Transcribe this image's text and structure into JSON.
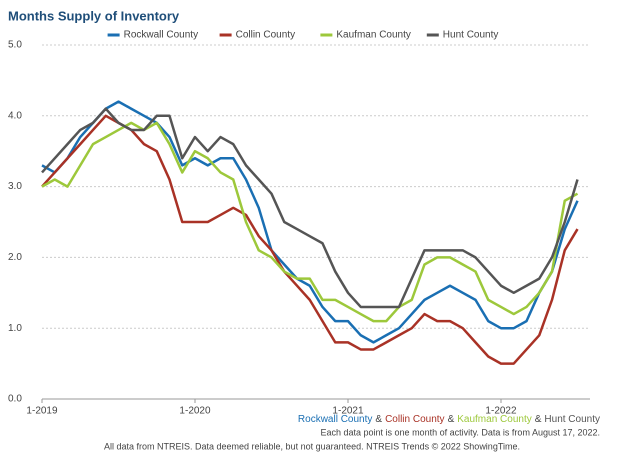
{
  "chart_data": {
    "type": "line",
    "title": "Months Supply of Inventory",
    "categories": [
      "1-2019",
      null,
      null,
      null,
      null,
      null,
      null,
      null,
      null,
      null,
      null,
      null,
      "1-2020",
      null,
      null,
      null,
      null,
      null,
      null,
      null,
      null,
      null,
      null,
      null,
      "1-2021",
      null,
      null,
      null,
      null,
      null,
      null,
      null,
      null,
      null,
      null,
      null,
      "1-2022",
      null,
      null,
      null,
      null,
      null,
      null
    ],
    "series": [
      {
        "name": "Rockwall County",
        "color": "#1a6fb3",
        "values": [
          3.3,
          3.2,
          3.4,
          3.7,
          3.9,
          4.1,
          4.2,
          4.1,
          4.0,
          3.9,
          3.7,
          3.3,
          3.4,
          3.3,
          3.4,
          3.4,
          3.1,
          2.7,
          2.1,
          1.9,
          1.7,
          1.6,
          1.3,
          1.1,
          1.1,
          0.9,
          0.8,
          0.9,
          1.0,
          1.2,
          1.4,
          1.5,
          1.6,
          1.5,
          1.4,
          1.1,
          1.0,
          1.0,
          1.1,
          1.5,
          1.8,
          2.4,
          2.8
        ]
      },
      {
        "name": "Collin County",
        "color": "#a93226",
        "values": [
          3.0,
          3.2,
          3.4,
          3.6,
          3.8,
          4.0,
          3.9,
          3.8,
          3.6,
          3.5,
          3.1,
          2.5,
          2.5,
          2.5,
          2.6,
          2.7,
          2.6,
          2.3,
          2.1,
          1.8,
          1.6,
          1.4,
          1.1,
          0.8,
          0.8,
          0.7,
          0.7,
          0.8,
          0.9,
          1.0,
          1.2,
          1.1,
          1.1,
          1.0,
          0.8,
          0.6,
          0.5,
          0.5,
          0.7,
          0.9,
          1.4,
          2.1,
          2.4
        ]
      },
      {
        "name": "Kaufman County",
        "color": "#9dc83b",
        "values": [
          3.0,
          3.1,
          3.0,
          3.3,
          3.6,
          3.7,
          3.8,
          3.9,
          3.8,
          3.9,
          3.6,
          3.2,
          3.5,
          3.4,
          3.2,
          3.1,
          2.5,
          2.1,
          2.0,
          1.8,
          1.7,
          1.7,
          1.4,
          1.4,
          1.3,
          1.2,
          1.1,
          1.1,
          1.3,
          1.4,
          1.9,
          2.0,
          2.0,
          1.9,
          1.8,
          1.4,
          1.3,
          1.2,
          1.3,
          1.5,
          1.8,
          2.8,
          2.9
        ]
      },
      {
        "name": "Hunt County",
        "color": "#555555",
        "values": [
          3.2,
          3.4,
          3.6,
          3.8,
          3.9,
          4.1,
          3.9,
          3.8,
          3.8,
          4.0,
          4.0,
          3.4,
          3.7,
          3.5,
          3.7,
          3.6,
          3.3,
          3.1,
          2.9,
          2.5,
          2.4,
          2.3,
          2.2,
          1.8,
          1.5,
          1.3,
          1.3,
          1.3,
          1.3,
          1.7,
          2.1,
          2.1,
          2.1,
          2.1,
          2.0,
          1.8,
          1.6,
          1.5,
          1.6,
          1.7,
          2.0,
          2.5,
          3.1
        ]
      }
    ],
    "ylim": [
      0,
      5
    ],
    "yticks": [
      {
        "value": 0,
        "label": "0.0"
      },
      {
        "value": 1,
        "label": "1.0"
      },
      {
        "value": 2,
        "label": "2.0"
      },
      {
        "value": 3,
        "label": "3.0"
      },
      {
        "value": 4,
        "label": "4.0"
      },
      {
        "value": 5,
        "label": "5.0"
      }
    ],
    "grid": true,
    "legend": "top",
    "legend_separator": "&",
    "note": "Each data point is one month of activity. Data is from August 17, 2022.",
    "footer": "All data from NTREIS. Data deemed reliable, but not guaranteed. NTREIS Trends © 2022 ShowingTime."
  }
}
